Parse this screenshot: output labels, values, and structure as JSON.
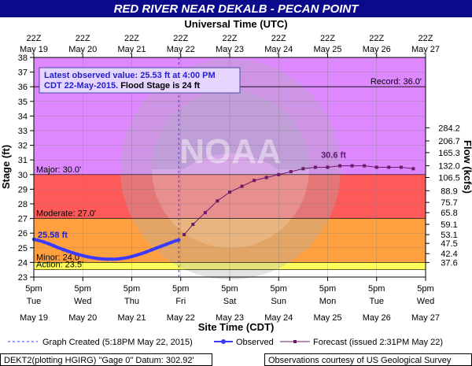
{
  "title": "RED RIVER NEAR DEKALB - PECAN POINT",
  "top_axis_title": "Universal Time (UTC)",
  "bottom_axis_title": "Site Time (CDT)",
  "left_axis_title": "Stage (ft)",
  "right_axis_title": "Flow (kcfs)",
  "infobox": {
    "line1": "Latest observed value: 25.53 ft at 4:00 PM",
    "line2a": "CDT 22-May-2015.",
    "line2b": " Flood Stage is 24 ft"
  },
  "annotations": {
    "observed_label": "25.58 ft",
    "forecast_peak_label": "30.6 ft"
  },
  "thresholds": [
    {
      "name": "Record",
      "label": "Record: 36.0'",
      "value": 36.0,
      "color": "#000000"
    },
    {
      "name": "Major",
      "label": "Major: 30.0'",
      "value": 30.0,
      "color": "#ff5a5a"
    },
    {
      "name": "Moderate",
      "label": "Moderate: 27.0'",
      "value": 27.0,
      "color": "#ffa040"
    },
    {
      "name": "Minor",
      "label": "Minor: 24.0'",
      "value": 24.0,
      "color": "#ffff5a"
    },
    {
      "name": "Action",
      "label": "Action: 23.5'",
      "value": 23.5,
      "color": "#ffff00"
    }
  ],
  "zone_colors": {
    "above_major": "#dd88ff",
    "major": "#ff5a5a",
    "moderate": "#ffa040",
    "minor": "#ffff5a",
    "action": "#ffff00",
    "normal": "#ffffff",
    "observed_line": "#3b3bff",
    "forecast_line": "#6a1a6a",
    "graph_created_line": "#3b3bff"
  },
  "legend": {
    "graph_created": "Graph Created (5:18PM May 22, 2015)",
    "observed": "Observed",
    "forecast": "Forecast (issued 2:31PM May 22)"
  },
  "footer": {
    "left": "DEKT2(plotting HGIRG) \"Gage 0\" Datum: 302.92'",
    "right": "Observations courtesy of US Geological Survey"
  },
  "watermark": "NOAA",
  "chart_data": {
    "type": "line",
    "x_unit": "days after 5pm CDT May 19 2015",
    "x_ticks_top": [
      {
        "time": "22Z",
        "date": "May 19"
      },
      {
        "time": "22Z",
        "date": "May 20"
      },
      {
        "time": "22Z",
        "date": "May 21"
      },
      {
        "time": "22Z",
        "date": "May 22"
      },
      {
        "time": "22Z",
        "date": "May 23"
      },
      {
        "time": "22Z",
        "date": "May 24"
      },
      {
        "time": "22Z",
        "date": "May 25"
      },
      {
        "time": "22Z",
        "date": "May 26"
      },
      {
        "time": "22Z",
        "date": "May 27"
      }
    ],
    "x_ticks_bottom": [
      {
        "time": "5pm",
        "day": "Tue",
        "date": "May 19"
      },
      {
        "time": "5pm",
        "day": "Wed",
        "date": "May 20"
      },
      {
        "time": "5pm",
        "day": "Thu",
        "date": "May 21"
      },
      {
        "time": "5pm",
        "day": "Fri",
        "date": "May 22"
      },
      {
        "time": "5pm",
        "day": "Sat",
        "date": "May 23"
      },
      {
        "time": "5pm",
        "day": "Sun",
        "date": "May 24"
      },
      {
        "time": "5pm",
        "day": "Mon",
        "date": "May 25"
      },
      {
        "time": "5pm",
        "day": "Tue",
        "date": "May 26"
      },
      {
        "time": "5pm",
        "day": "Wed",
        "date": "May 27"
      }
    ],
    "xlim": [
      0,
      8
    ],
    "ylim": [
      23,
      38
    ],
    "y_ticks": [
      23,
      24,
      25,
      26,
      27,
      28,
      29,
      30,
      31,
      32,
      33,
      34,
      35,
      36,
      37,
      38
    ],
    "flow_ticks": [
      {
        "stage": 24.0,
        "label": "37.6"
      },
      {
        "stage": 24.6,
        "label": "42.4"
      },
      {
        "stage": 25.3,
        "label": "47.5"
      },
      {
        "stage": 25.9,
        "label": "53.1"
      },
      {
        "stage": 26.6,
        "label": "59.1"
      },
      {
        "stage": 27.4,
        "label": "65.8"
      },
      {
        "stage": 28.1,
        "label": "75.7"
      },
      {
        "stage": 28.9,
        "label": "88.9"
      },
      {
        "stage": 29.8,
        "label": "106.5"
      },
      {
        "stage": 30.6,
        "label": "132.0"
      },
      {
        "stage": 31.5,
        "label": "165.3"
      },
      {
        "stage": 32.3,
        "label": "206.7"
      },
      {
        "stage": 33.2,
        "label": "284.2"
      }
    ],
    "graph_created_x": 2.96,
    "series": [
      {
        "name": "Observed",
        "x": [
          0.0,
          0.1,
          0.2,
          0.3,
          0.4,
          0.5,
          0.6,
          0.7,
          0.8,
          0.9,
          1.0,
          1.1,
          1.2,
          1.3,
          1.4,
          1.5,
          1.6,
          1.7,
          1.8,
          1.9,
          2.0,
          2.1,
          2.2,
          2.3,
          2.4,
          2.5,
          2.6,
          2.7,
          2.8,
          2.9,
          2.96
        ],
        "y": [
          25.58,
          25.5,
          25.4,
          25.28,
          25.15,
          25.0,
          24.88,
          24.76,
          24.65,
          24.55,
          24.46,
          24.38,
          24.32,
          24.27,
          24.24,
          24.22,
          24.22,
          24.23,
          24.27,
          24.32,
          24.4,
          24.5,
          24.6,
          24.72,
          24.85,
          24.98,
          25.1,
          25.23,
          25.36,
          25.48,
          25.53
        ]
      },
      {
        "name": "Forecast",
        "x": [
          3.07,
          3.25,
          3.5,
          3.75,
          4.0,
          4.25,
          4.5,
          4.75,
          5.0,
          5.25,
          5.5,
          5.75,
          6.0,
          6.25,
          6.5,
          6.75,
          7.0,
          7.25,
          7.5,
          7.75
        ],
        "y": [
          25.9,
          26.6,
          27.4,
          28.2,
          28.8,
          29.2,
          29.6,
          29.8,
          30.0,
          30.2,
          30.4,
          30.5,
          30.5,
          30.6,
          30.6,
          30.6,
          30.5,
          30.5,
          30.5,
          30.4
        ]
      }
    ]
  }
}
